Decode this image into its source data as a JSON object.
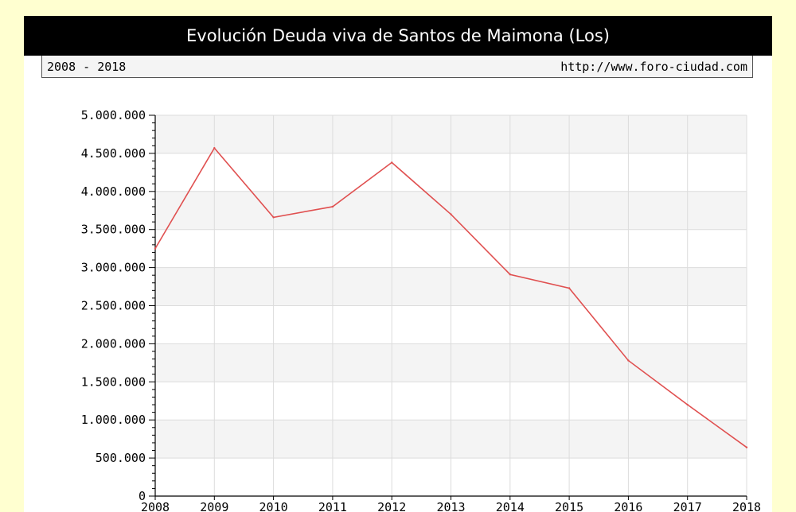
{
  "header": {
    "title": "Evolución Deuda viva de Santos de Maimona (Los)",
    "range": "2008 - 2018",
    "source": "http://www.foro-ciudad.com"
  },
  "colors": {
    "page_background": "#ffffd0",
    "title_background": "#000000",
    "line": "#e05050",
    "band": "#f4f4f4",
    "grid": "#dcdcdc"
  },
  "chart_data": {
    "type": "line",
    "title": "Evolución Deuda viva de Santos de Maimona (Los)",
    "xlabel": "",
    "ylabel": "",
    "x": [
      "2008",
      "2009",
      "2010",
      "2011",
      "2012",
      "2013",
      "2014",
      "2015",
      "2016",
      "2017",
      "2018"
    ],
    "series": [
      {
        "values": [
          3250000,
          4570000,
          3660000,
          3800000,
          4380000,
          3700000,
          2910000,
          2730000,
          1780000,
          1200000,
          640000
        ]
      }
    ],
    "ylim": [
      0,
      5000000
    ],
    "yticks": [
      0,
      500000,
      1000000,
      1500000,
      2000000,
      2500000,
      3000000,
      3500000,
      4000000,
      4500000,
      5000000
    ],
    "ytick_labels": [
      "0",
      "500.000",
      "1.000.000",
      "1.500.000",
      "2.000.000",
      "2.500.000",
      "3.000.000",
      "3.500.000",
      "4.000.000",
      "4.500.000",
      "5.000.000"
    ],
    "grid": true,
    "legend": "none"
  }
}
